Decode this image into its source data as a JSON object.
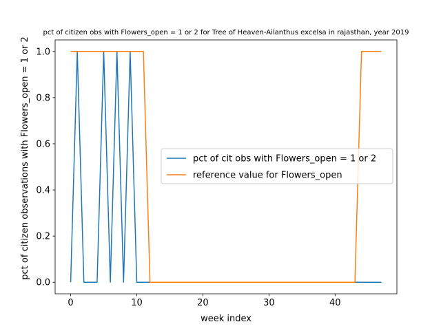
{
  "chart_data": {
    "type": "line",
    "title": "pct of citizen obs with Flowers_open = 1 or 2 for Tree of Heaven-Ailanthus excelsa in rajasthan, year 2019",
    "xlabel": "week index",
    "ylabel": "pct of citizen observations with Flowers_open = 1 or 2",
    "xlim": [
      -2.35,
      49.35
    ],
    "ylim": [
      -0.05,
      1.05
    ],
    "xticks": [
      0,
      10,
      20,
      30,
      40
    ],
    "yticks": [
      0.0,
      0.2,
      0.4,
      0.6,
      0.8,
      1.0
    ],
    "ytick_labels": [
      "0.0",
      "0.2",
      "0.4",
      "0.6",
      "0.8",
      "1.0"
    ],
    "grid": false,
    "legend_position": "center-right",
    "x": [
      0,
      1,
      2,
      3,
      4,
      5,
      6,
      7,
      8,
      9,
      10,
      11,
      12,
      13,
      14,
      15,
      16,
      17,
      18,
      19,
      20,
      21,
      22,
      23,
      24,
      25,
      26,
      27,
      28,
      29,
      30,
      31,
      32,
      33,
      34,
      35,
      36,
      37,
      38,
      39,
      40,
      41,
      42,
      43,
      44,
      45,
      46,
      47
    ],
    "series": [
      {
        "name": "pct of cit obs with Flowers_open = 1 or 2",
        "color": "#1f77b4",
        "values": [
          0,
          1,
          0,
          0,
          0,
          1,
          0,
          1,
          0,
          1,
          0,
          0,
          0,
          0,
          0,
          0,
          0,
          0,
          0,
          0,
          0,
          0,
          0,
          0,
          0,
          0,
          0,
          0,
          0,
          0,
          0,
          0,
          0,
          0,
          0,
          0,
          0,
          0,
          0,
          0,
          0,
          0,
          0,
          0,
          0,
          0,
          0,
          0
        ]
      },
      {
        "name": "reference value for Flowers_open",
        "color": "#ff7f0e",
        "values": [
          1,
          1,
          1,
          1,
          1,
          1,
          1,
          1,
          1,
          1,
          1,
          1,
          0,
          0,
          0,
          0,
          0,
          0,
          0,
          0,
          0,
          0,
          0,
          0,
          0,
          0,
          0,
          0,
          0,
          0,
          0,
          0,
          0,
          0,
          0,
          0,
          0,
          0,
          0,
          0,
          0,
          0,
          0,
          0,
          1,
          1,
          1,
          1
        ]
      }
    ]
  }
}
